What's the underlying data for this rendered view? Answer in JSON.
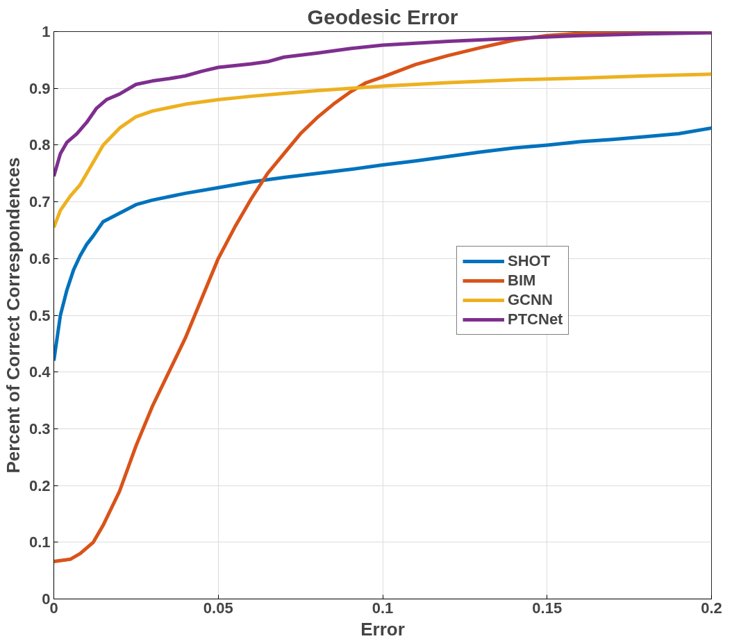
{
  "chart_data": {
    "type": "line",
    "title": "Geodesic Error",
    "xlabel": "Error",
    "ylabel": "Percent of Correct Correspondences",
    "xlim": [
      0,
      0.2
    ],
    "ylim": [
      0,
      1
    ],
    "xticks": [
      0,
      0.05,
      0.1,
      0.15,
      0.2
    ],
    "yticks": [
      0,
      0.1,
      0.2,
      0.3,
      0.4,
      0.5,
      0.6,
      0.7,
      0.8,
      0.9,
      1
    ],
    "grid": true,
    "legend": "right",
    "line_style": "solid",
    "marker": "none",
    "series": [
      {
        "name": "SHOT",
        "color": "#0072bd",
        "x": [
          0,
          0.002,
          0.004,
          0.006,
          0.008,
          0.01,
          0.012,
          0.015,
          0.02,
          0.025,
          0.03,
          0.04,
          0.05,
          0.06,
          0.07,
          0.08,
          0.09,
          0.1,
          0.11,
          0.12,
          0.13,
          0.14,
          0.15,
          0.16,
          0.17,
          0.18,
          0.19,
          0.2
        ],
        "values": [
          0.42,
          0.5,
          0.545,
          0.58,
          0.605,
          0.625,
          0.64,
          0.665,
          0.68,
          0.695,
          0.703,
          0.715,
          0.725,
          0.735,
          0.743,
          0.75,
          0.757,
          0.765,
          0.772,
          0.78,
          0.788,
          0.795,
          0.8,
          0.806,
          0.81,
          0.815,
          0.82,
          0.83
        ]
      },
      {
        "name": "BIM",
        "color": "#d95319",
        "x": [
          0,
          0.005,
          0.008,
          0.012,
          0.015,
          0.02,
          0.025,
          0.03,
          0.035,
          0.04,
          0.045,
          0.05,
          0.055,
          0.06,
          0.065,
          0.07,
          0.075,
          0.08,
          0.085,
          0.09,
          0.095,
          0.1,
          0.11,
          0.12,
          0.13,
          0.14,
          0.15,
          0.16,
          0.17,
          0.2
        ],
        "values": [
          0.066,
          0.07,
          0.08,
          0.1,
          0.13,
          0.19,
          0.27,
          0.34,
          0.4,
          0.46,
          0.53,
          0.6,
          0.655,
          0.705,
          0.75,
          0.785,
          0.82,
          0.848,
          0.872,
          0.893,
          0.91,
          0.92,
          0.942,
          0.958,
          0.972,
          0.985,
          0.993,
          0.997,
          0.999,
          1.0
        ]
      },
      {
        "name": "GCNN",
        "color": "#edb120",
        "x": [
          0,
          0.002,
          0.005,
          0.008,
          0.01,
          0.015,
          0.02,
          0.025,
          0.03,
          0.04,
          0.05,
          0.06,
          0.07,
          0.08,
          0.09,
          0.1,
          0.12,
          0.14,
          0.16,
          0.18,
          0.2
        ],
        "values": [
          0.655,
          0.685,
          0.71,
          0.73,
          0.75,
          0.8,
          0.83,
          0.85,
          0.86,
          0.872,
          0.88,
          0.886,
          0.891,
          0.896,
          0.9,
          0.904,
          0.91,
          0.915,
          0.918,
          0.922,
          0.925
        ]
      },
      {
        "name": "PTCNet",
        "color": "#7e2f8e",
        "x": [
          0,
          0.002,
          0.004,
          0.007,
          0.01,
          0.013,
          0.016,
          0.02,
          0.025,
          0.03,
          0.035,
          0.04,
          0.045,
          0.05,
          0.06,
          0.065,
          0.07,
          0.08,
          0.09,
          0.1,
          0.12,
          0.14,
          0.16,
          0.18,
          0.2
        ],
        "values": [
          0.745,
          0.785,
          0.805,
          0.82,
          0.84,
          0.865,
          0.88,
          0.89,
          0.907,
          0.913,
          0.917,
          0.922,
          0.93,
          0.937,
          0.943,
          0.947,
          0.955,
          0.962,
          0.97,
          0.976,
          0.983,
          0.988,
          0.993,
          0.996,
          0.998
        ]
      }
    ]
  }
}
